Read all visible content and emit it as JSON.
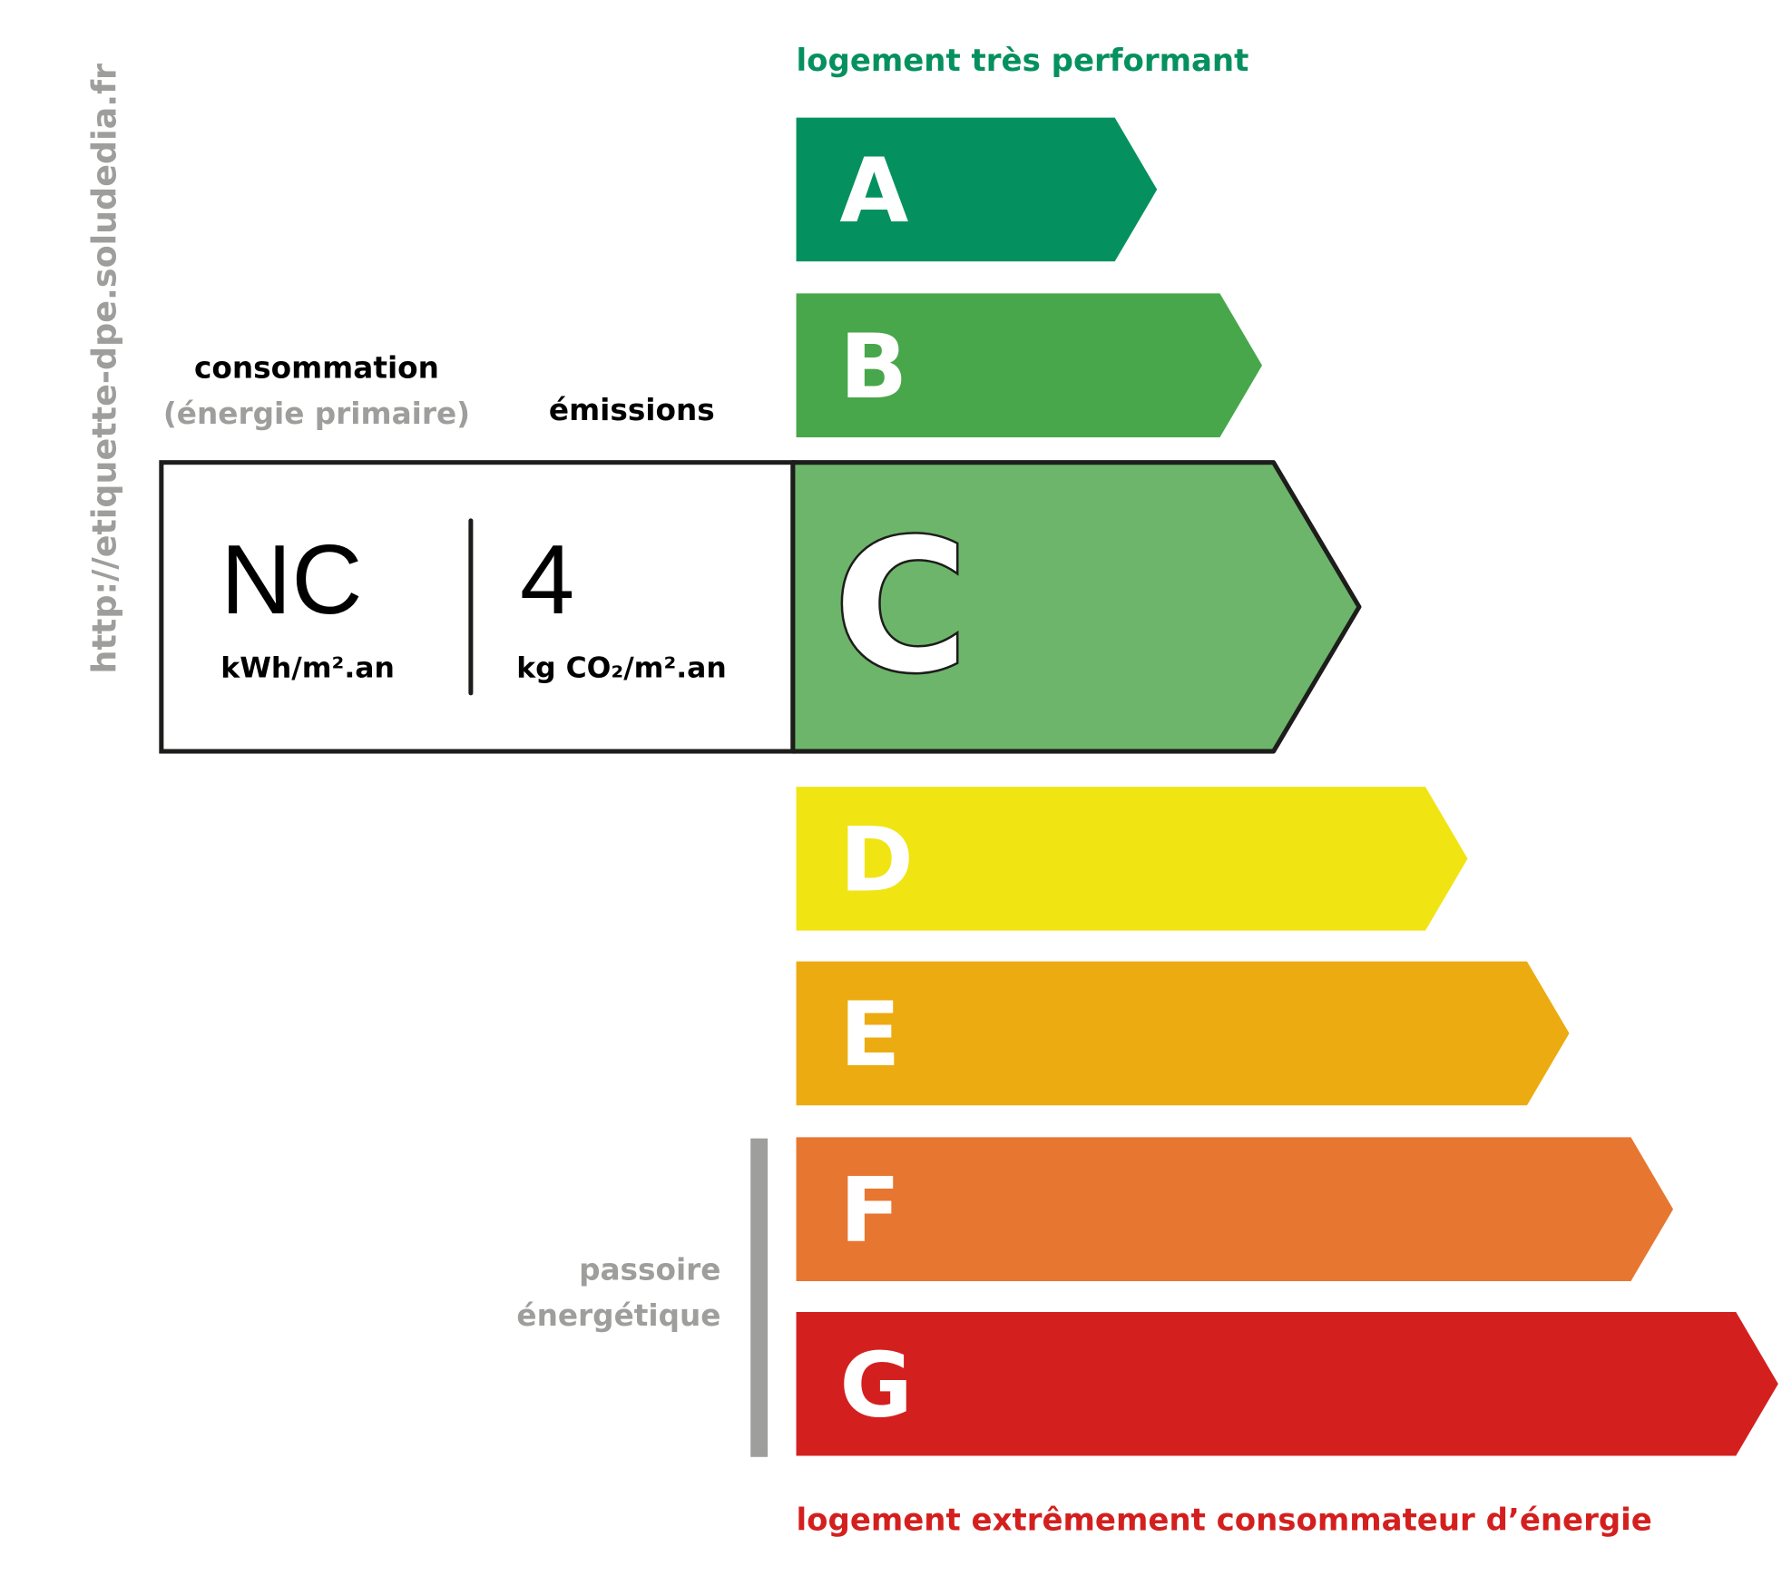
{
  "watermark_url": "http://etiquette-dpe.soludedia.fr",
  "top_label": "logement très performant",
  "bottom_label": "logement extrêmement consommateur d’énergie",
  "consumption": {
    "title": "consommation",
    "subtitle": "(énergie primaire)",
    "value": "NC",
    "unit": "kWh/m².an"
  },
  "emissions": {
    "title": "émissions",
    "value": "4",
    "unit": "kg CO₂/m².an"
  },
  "passoire": {
    "line1": "passoire",
    "line2": "énergétique"
  },
  "selected_class": "C",
  "classes": [
    {
      "letter": "A",
      "color": "#05915f"
    },
    {
      "letter": "B",
      "color": "#47a74a"
    },
    {
      "letter": "C",
      "color": "#6db56b"
    },
    {
      "letter": "D",
      "color": "#f0e413"
    },
    {
      "letter": "E",
      "color": "#ecab10"
    },
    {
      "letter": "F",
      "color": "#e77631"
    },
    {
      "letter": "G",
      "color": "#d3201f"
    }
  ],
  "colors": {
    "top_label": "#05915f",
    "bottom_label": "#d3201f",
    "gray": "#9e9e9c"
  }
}
